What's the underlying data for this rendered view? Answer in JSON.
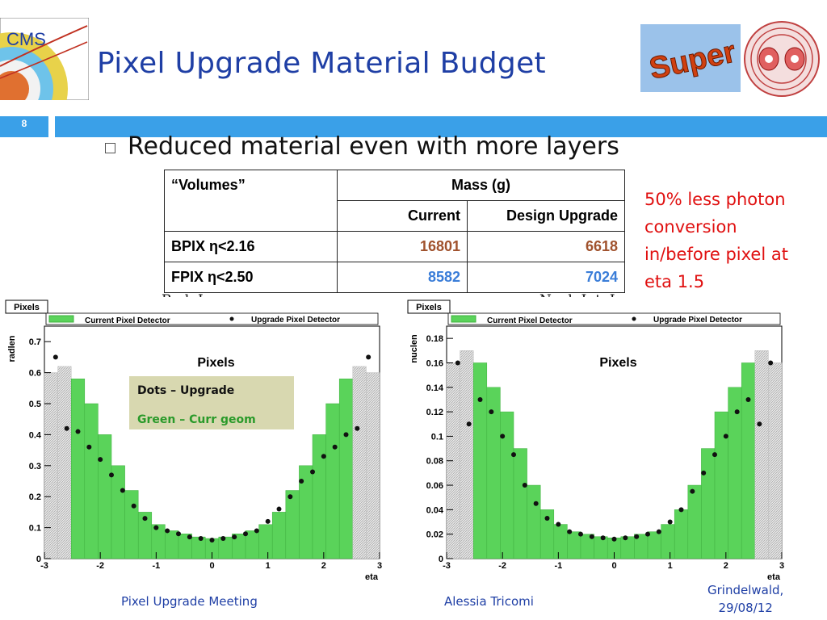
{
  "slide": {
    "title": "Pixel Upgrade Material Budget",
    "number": "8",
    "bullet": "Reduced material even with more layers",
    "note": "50% less photon conversion in/before pixel at eta 1.5",
    "logos": {
      "cms_text": "CMS",
      "super_text": "Super"
    },
    "footer": {
      "left": "Pixel Upgrade Meeting",
      "center": "Alessia Tricomi",
      "right_line1": "Grindelwald,",
      "right_line2": "29/08/12"
    }
  },
  "table": {
    "header_volumes": "“Volumes”",
    "header_mass": "Mass (g)",
    "sub_current": "Current",
    "sub_design": "Design Upgrade",
    "rows": [
      {
        "label": "BPIX η<2.16",
        "current": "16801",
        "design": "6618",
        "color": "#a0522d"
      },
      {
        "label": "FPIX η<2.50",
        "current": "8582",
        "design": "7024",
        "color": "#3a7dd8"
      }
    ]
  },
  "colors": {
    "accent_bar": "#3aa0e8",
    "title": "#1f3fa5",
    "note": "#e01010",
    "hist_green": "#5ad35a"
  },
  "chart_data": [
    {
      "type": "area",
      "caption": "Rad. Len.",
      "frame_label": "Pixels",
      "inner_title": "Pixels",
      "legend": [
        "Current Pixel Detector",
        "Upgrade Pixel Detector"
      ],
      "annotation": [
        "Dots – Upgrade",
        "Green – Curr geom"
      ],
      "xlabel": "eta",
      "ylabel": "radlen",
      "xlim": [
        -3,
        3
      ],
      "ylim": [
        0,
        0.75
      ],
      "xticks": [
        "-3",
        "-2",
        "-1",
        "0",
        "1",
        "2",
        "3"
      ],
      "yticks": [
        "0",
        "0.1",
        "0.2",
        "0.3",
        "0.4",
        "0.5",
        "0.6",
        "0.7"
      ],
      "series": [
        {
          "name": "Current Pixel Detector",
          "x": [
            -3.0,
            -2.75,
            -2.5,
            -2.25,
            -2.0,
            -1.75,
            -1.5,
            -1.25,
            -1.0,
            -0.75,
            -0.5,
            -0.25,
            0.0,
            0.25,
            0.5,
            0.75,
            1.0,
            1.25,
            1.5,
            1.75,
            2.0,
            2.25,
            2.5,
            2.75,
            3.0
          ],
          "values": [
            0.6,
            0.62,
            0.58,
            0.5,
            0.4,
            0.3,
            0.22,
            0.15,
            0.11,
            0.09,
            0.08,
            0.07,
            0.065,
            0.07,
            0.08,
            0.09,
            0.11,
            0.15,
            0.22,
            0.3,
            0.4,
            0.5,
            0.58,
            0.62,
            0.6
          ]
        },
        {
          "name": "Upgrade Pixel Detector",
          "x": [
            -2.8,
            -2.6,
            -2.4,
            -2.2,
            -2.0,
            -1.8,
            -1.6,
            -1.4,
            -1.2,
            -1.0,
            -0.8,
            -0.6,
            -0.4,
            -0.2,
            0.0,
            0.2,
            0.4,
            0.6,
            0.8,
            1.0,
            1.2,
            1.4,
            1.6,
            1.8,
            2.0,
            2.2,
            2.4,
            2.6,
            2.8
          ],
          "values": [
            0.65,
            0.42,
            0.41,
            0.36,
            0.32,
            0.27,
            0.22,
            0.17,
            0.13,
            0.1,
            0.09,
            0.08,
            0.07,
            0.065,
            0.06,
            0.065,
            0.07,
            0.08,
            0.09,
            0.12,
            0.16,
            0.2,
            0.25,
            0.28,
            0.33,
            0.36,
            0.4,
            0.42,
            0.65
          ]
        }
      ]
    },
    {
      "type": "area",
      "caption": "Nucl. Int. Len.",
      "frame_label": "Pixels",
      "inner_title": "Pixels",
      "legend": [
        "Current Pixel Detector",
        "Upgrade Pixel Detector"
      ],
      "xlabel": "eta",
      "ylabel": "nuclen",
      "xlim": [
        -3,
        3
      ],
      "ylim": [
        0,
        0.19
      ],
      "xticks": [
        "-3",
        "-2",
        "-1",
        "0",
        "1",
        "2",
        "3"
      ],
      "yticks": [
        "0",
        "0.02",
        "0.04",
        "0.06",
        "0.08",
        "0.1",
        "0.12",
        "0.14",
        "0.16",
        "0.18"
      ],
      "series": [
        {
          "name": "Current Pixel Detector",
          "x": [
            -3.0,
            -2.75,
            -2.5,
            -2.25,
            -2.0,
            -1.75,
            -1.5,
            -1.25,
            -1.0,
            -0.75,
            -0.5,
            -0.25,
            0.0,
            0.25,
            0.5,
            0.75,
            1.0,
            1.25,
            1.5,
            1.75,
            2.0,
            2.25,
            2.5,
            2.75,
            3.0
          ],
          "values": [
            0.16,
            0.17,
            0.16,
            0.14,
            0.12,
            0.09,
            0.06,
            0.04,
            0.028,
            0.022,
            0.02,
            0.018,
            0.017,
            0.018,
            0.02,
            0.022,
            0.028,
            0.04,
            0.06,
            0.09,
            0.12,
            0.14,
            0.16,
            0.17,
            0.16
          ]
        },
        {
          "name": "Upgrade Pixel Detector",
          "x": [
            -2.8,
            -2.6,
            -2.4,
            -2.2,
            -2.0,
            -1.8,
            -1.6,
            -1.4,
            -1.2,
            -1.0,
            -0.8,
            -0.6,
            -0.4,
            -0.2,
            0.0,
            0.2,
            0.4,
            0.6,
            0.8,
            1.0,
            1.2,
            1.4,
            1.6,
            1.8,
            2.0,
            2.2,
            2.4,
            2.6,
            2.8
          ],
          "values": [
            0.16,
            0.11,
            0.13,
            0.12,
            0.1,
            0.085,
            0.06,
            0.045,
            0.033,
            0.028,
            0.022,
            0.02,
            0.018,
            0.017,
            0.016,
            0.017,
            0.018,
            0.02,
            0.022,
            0.03,
            0.04,
            0.055,
            0.07,
            0.085,
            0.1,
            0.12,
            0.13,
            0.11,
            0.16
          ]
        }
      ]
    }
  ]
}
